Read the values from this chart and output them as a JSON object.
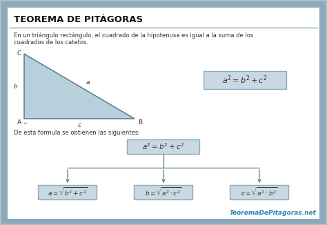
{
  "title": "TEOREMA DE PITÁGORAS",
  "description_line1": "En un triángulo rectángulo, el cuadrado de la hipotenusa es igual a la suma de los",
  "description_line2": "cuadrados de los catetos.",
  "formula_text1": "De esta formula se obtienen las siguientes:",
  "watermark": "TeoremaDePitagoras.net",
  "bg_color": "#b0bec8",
  "inner_bg": "#ffffff",
  "box_fill": "#c8d9e2",
  "box_edge": "#8aaabb",
  "tri_fill": "#b8d0dc",
  "tri_edge": "#5a7a8a",
  "title_color": "#111111",
  "text_color": "#333333",
  "watermark_color": "#2a7fb0",
  "border_color": "#8aaabb"
}
